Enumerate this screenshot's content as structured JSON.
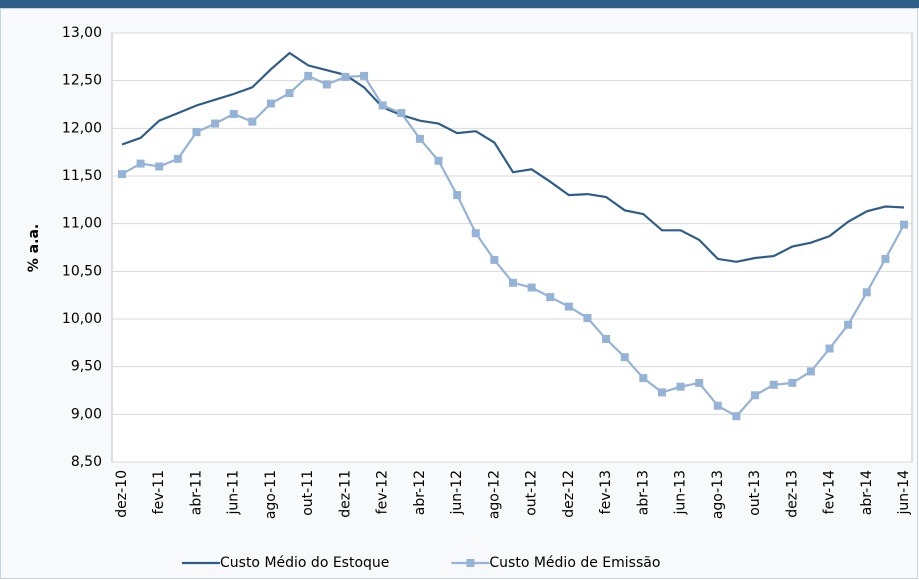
{
  "chart_data": {
    "type": "line",
    "ylabel": "% a.a.",
    "categories": [
      "dez-10",
      null,
      "fev-11",
      null,
      "abr-11",
      null,
      "jun-11",
      null,
      "ago-11",
      null,
      "out-11",
      null,
      "dez-11",
      null,
      "fev-12",
      null,
      "abr-12",
      null,
      "jun-12",
      null,
      "ago-12",
      null,
      "out-12",
      null,
      "dez-12",
      null,
      "fev-13",
      null,
      "abr-13",
      null,
      "jun-13",
      null,
      "ago-13",
      null,
      "out-13",
      null,
      "dez-13",
      null,
      "fev-14",
      null,
      "abr-14",
      null,
      "jun-14"
    ],
    "series": [
      {
        "name": "Custo Médio do Estoque",
        "color": "#2f5d8a",
        "marker": false,
        "values": [
          11.83,
          11.9,
          12.08,
          12.16,
          12.24,
          12.3,
          12.36,
          12.43,
          12.62,
          12.79,
          12.66,
          12.61,
          12.56,
          12.43,
          12.22,
          12.14,
          12.08,
          12.05,
          11.95,
          11.97,
          11.85,
          11.54,
          11.57,
          11.44,
          11.3,
          11.31,
          11.28,
          11.14,
          11.1,
          10.93,
          10.93,
          10.83,
          10.63,
          10.6,
          10.64,
          10.66,
          10.76,
          10.8,
          10.87,
          11.02,
          11.13,
          11.18,
          11.17
        ]
      },
      {
        "name": "Custo Médio de Emissão",
        "color": "#95b3d7",
        "marker": true,
        "values": [
          11.52,
          11.63,
          11.6,
          11.68,
          11.96,
          12.05,
          12.15,
          12.07,
          12.26,
          12.37,
          12.55,
          12.46,
          12.54,
          12.55,
          12.24,
          12.16,
          11.89,
          11.66,
          11.3,
          10.9,
          10.62,
          10.38,
          10.33,
          10.23,
          10.13,
          10.01,
          9.79,
          9.6,
          9.38,
          9.23,
          9.29,
          9.33,
          9.09,
          8.98,
          9.2,
          9.31,
          9.33,
          9.45,
          9.69,
          9.94,
          10.28,
          10.63,
          10.99
        ]
      }
    ],
    "ylim": [
      8.5,
      13
    ],
    "yticks": [
      {
        "value": 8.5,
        "label": "8,50"
      },
      {
        "value": 9,
        "label": "9,00"
      },
      {
        "value": 9.5,
        "label": "9,50"
      },
      {
        "value": 10,
        "label": "10,00"
      },
      {
        "value": 10.5,
        "label": "10,50"
      },
      {
        "value": 11,
        "label": "11,00"
      },
      {
        "value": 11.5,
        "label": "11,50"
      },
      {
        "value": 12,
        "label": "12,00"
      },
      {
        "value": 12.5,
        "label": "12,50"
      },
      {
        "value": 13,
        "label": "13,00"
      }
    ],
    "grid": true,
    "legend": "bottom"
  }
}
